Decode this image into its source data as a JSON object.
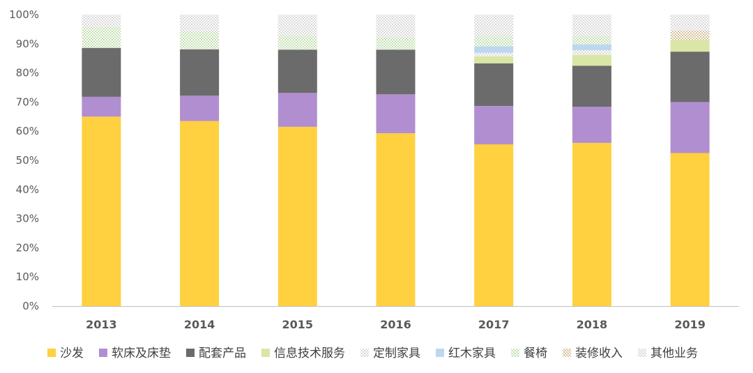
{
  "chart_data": {
    "type": "bar",
    "stacked": true,
    "percent": true,
    "title": "",
    "xlabel": "",
    "ylabel": "",
    "ylim": [
      0,
      100
    ],
    "y_ticks": [
      "0%",
      "10%",
      "20%",
      "30%",
      "40%",
      "50%",
      "60%",
      "70%",
      "80%",
      "90%",
      "100%"
    ],
    "grid": false,
    "legend_position": "bottom",
    "categories": [
      "2013",
      "2014",
      "2015",
      "2016",
      "2017",
      "2018",
      "2019"
    ],
    "series": [
      {
        "name": "沙发",
        "color": "#FFD040",
        "pattern": "solid",
        "values": [
          65.0,
          63.5,
          61.5,
          59.3,
          55.5,
          56.0,
          52.5
        ]
      },
      {
        "name": "软床及床垫",
        "color": "#B18ED0",
        "pattern": "solid",
        "values": [
          6.8,
          8.7,
          11.7,
          13.4,
          13.1,
          12.4,
          17.5
        ]
      },
      {
        "name": "配套产品",
        "color": "#6B6B6B",
        "pattern": "solid",
        "values": [
          16.8,
          15.9,
          14.8,
          15.3,
          14.7,
          14.1,
          17.3
        ]
      },
      {
        "name": "信息技术服务",
        "color": "#D9E6A6",
        "pattern": "solid",
        "values": [
          0,
          0,
          0,
          0,
          2.4,
          3.7,
          4.0
        ]
      },
      {
        "name": "定制家具",
        "color": "#D9D9D9",
        "pattern": "dots",
        "values": [
          0,
          0,
          0,
          0,
          1.2,
          1.6,
          0
        ]
      },
      {
        "name": "红木家具",
        "color": "#BDD7EE",
        "pattern": "solid",
        "values": [
          0,
          0,
          0,
          0,
          2.2,
          2.0,
          0
        ]
      },
      {
        "name": "餐椅",
        "color": "#C5E0B4",
        "pattern": "dots",
        "values": [
          7.1,
          6.2,
          5.0,
          4.4,
          3.6,
          2.8,
          0
        ]
      },
      {
        "name": "装修收入",
        "color": "#D6C29A",
        "pattern": "dots",
        "values": [
          0,
          0,
          0,
          0,
          0,
          0,
          3.2
        ]
      },
      {
        "name": "其他业务",
        "color": "#D9D9D9",
        "pattern": "dots",
        "values": [
          4.3,
          5.7,
          7.0,
          7.6,
          7.3,
          7.4,
          5.5
        ]
      }
    ]
  }
}
